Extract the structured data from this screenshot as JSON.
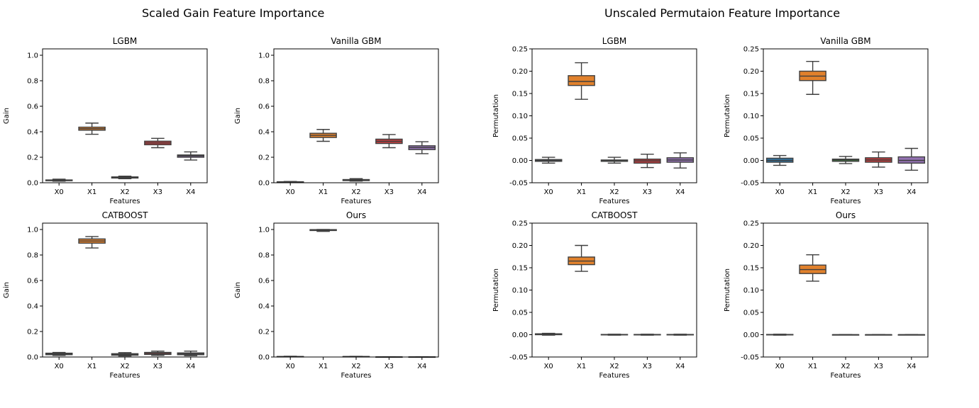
{
  "figure": {
    "left_title": "Scaled Gain Feature Importance",
    "right_title": "Unscaled Permutaion Feature Importance"
  },
  "colors": {
    "X0": "#3274a1",
    "X1": "#e1812c",
    "X2": "#3a923a",
    "X3": "#c03d3e",
    "X4": "#9372b2",
    "box_edge": "#3f3f3f"
  },
  "chart_data": [
    {
      "type": "boxplot",
      "title": "LGBM",
      "xlabel": "Features",
      "ylabel": "Gain",
      "categories": [
        "X0",
        "X1",
        "X2",
        "X3",
        "X4"
      ],
      "ylim": [
        0,
        1.05
      ],
      "yticks": [
        0.0,
        0.2,
        0.4,
        0.6,
        0.8,
        1.0
      ],
      "tick_decimals": 1,
      "boxes": [
        {
          "whislo": 0.012,
          "q1": 0.016,
          "med": 0.019,
          "q3": 0.022,
          "whishi": 0.028
        },
        {
          "whislo": 0.38,
          "q1": 0.412,
          "med": 0.424,
          "q3": 0.436,
          "whishi": 0.468
        },
        {
          "whislo": 0.032,
          "q1": 0.037,
          "med": 0.041,
          "q3": 0.046,
          "whishi": 0.052
        },
        {
          "whislo": 0.275,
          "q1": 0.298,
          "med": 0.312,
          "q3": 0.326,
          "whishi": 0.348
        },
        {
          "whislo": 0.178,
          "q1": 0.2,
          "med": 0.21,
          "q3": 0.218,
          "whishi": 0.242
        }
      ]
    },
    {
      "type": "boxplot",
      "title": "Vanilla GBM",
      "xlabel": "Features",
      "ylabel": "Gain",
      "categories": [
        "X0",
        "X1",
        "X2",
        "X3",
        "X4"
      ],
      "ylim": [
        0,
        1.05
      ],
      "yticks": [
        0.0,
        0.2,
        0.4,
        0.6,
        0.8,
        1.0
      ],
      "tick_decimals": 1,
      "boxes": [
        {
          "whislo": 0.002,
          "q1": 0.004,
          "med": 0.006,
          "q3": 0.008,
          "whishi": 0.01
        },
        {
          "whislo": 0.325,
          "q1": 0.355,
          "med": 0.372,
          "q3": 0.388,
          "whishi": 0.418
        },
        {
          "whislo": 0.013,
          "q1": 0.017,
          "med": 0.021,
          "q3": 0.025,
          "whishi": 0.032
        },
        {
          "whislo": 0.275,
          "q1": 0.308,
          "med": 0.325,
          "q3": 0.342,
          "whishi": 0.378
        },
        {
          "whislo": 0.228,
          "q1": 0.26,
          "med": 0.276,
          "q3": 0.29,
          "whishi": 0.322
        }
      ]
    },
    {
      "type": "boxplot",
      "title": "LGBM",
      "xlabel": "Features",
      "ylabel": "Permutation",
      "categories": [
        "X0",
        "X1",
        "X2",
        "X3",
        "X4"
      ],
      "ylim": [
        -0.05,
        0.25
      ],
      "yticks": [
        -0.05,
        0.0,
        0.05,
        0.1,
        0.15,
        0.2,
        0.25
      ],
      "tick_decimals": 2,
      "boxes": [
        {
          "whislo": -0.006,
          "q1": -0.002,
          "med": 0.0,
          "q3": 0.002,
          "whishi": 0.007
        },
        {
          "whislo": 0.137,
          "q1": 0.168,
          "med": 0.177,
          "q3": 0.19,
          "whishi": 0.219
        },
        {
          "whislo": -0.006,
          "q1": -0.002,
          "med": 0.0,
          "q3": 0.001,
          "whishi": 0.007
        },
        {
          "whislo": -0.016,
          "q1": -0.006,
          "med": -0.001,
          "q3": 0.003,
          "whishi": 0.014
        },
        {
          "whislo": -0.017,
          "q1": -0.004,
          "med": 0.001,
          "q3": 0.006,
          "whishi": 0.017
        }
      ]
    },
    {
      "type": "boxplot",
      "title": "Vanilla GBM",
      "xlabel": "Features",
      "ylabel": "Permutation",
      "categories": [
        "X0",
        "X1",
        "X2",
        "X3",
        "X4"
      ],
      "ylim": [
        -0.05,
        0.25
      ],
      "yticks": [
        -0.05,
        0.0,
        0.05,
        0.1,
        0.15,
        0.2,
        0.25
      ],
      "tick_decimals": 2,
      "boxes": [
        {
          "whislo": -0.011,
          "q1": -0.004,
          "med": 0.0,
          "q3": 0.005,
          "whishi": 0.011
        },
        {
          "whislo": 0.148,
          "q1": 0.179,
          "med": 0.189,
          "q3": 0.2,
          "whishi": 0.222
        },
        {
          "whislo": -0.007,
          "q1": -0.002,
          "med": 0.001,
          "q3": 0.003,
          "whishi": 0.009
        },
        {
          "whislo": -0.015,
          "q1": -0.004,
          "med": 0.001,
          "q3": 0.006,
          "whishi": 0.019
        },
        {
          "whislo": -0.022,
          "q1": -0.006,
          "med": 0.0,
          "q3": 0.008,
          "whishi": 0.027
        }
      ]
    },
    {
      "type": "boxplot",
      "title": "CATBOOST",
      "xlabel": "Features",
      "ylabel": "Gain",
      "categories": [
        "X0",
        "X1",
        "X2",
        "X3",
        "X4"
      ],
      "ylim": [
        0,
        1.05
      ],
      "yticks": [
        0.0,
        0.2,
        0.4,
        0.6,
        0.8,
        1.0
      ],
      "tick_decimals": 1,
      "boxes": [
        {
          "whislo": 0.012,
          "q1": 0.018,
          "med": 0.024,
          "q3": 0.03,
          "whishi": 0.036
        },
        {
          "whislo": 0.855,
          "q1": 0.893,
          "med": 0.91,
          "q3": 0.926,
          "whishi": 0.945
        },
        {
          "whislo": 0.008,
          "q1": 0.014,
          "med": 0.02,
          "q3": 0.026,
          "whishi": 0.034
        },
        {
          "whislo": 0.012,
          "q1": 0.02,
          "med": 0.028,
          "q3": 0.036,
          "whishi": 0.046
        },
        {
          "whislo": 0.01,
          "q1": 0.018,
          "med": 0.025,
          "q3": 0.032,
          "whishi": 0.046
        }
      ]
    },
    {
      "type": "boxplot",
      "title": "Ours",
      "xlabel": "Features",
      "ylabel": "Gain",
      "categories": [
        "X0",
        "X1",
        "X2",
        "X3",
        "X4"
      ],
      "ylim": [
        0,
        1.05
      ],
      "yticks": [
        0.0,
        0.2,
        0.4,
        0.6,
        0.8,
        1.0
      ],
      "tick_decimals": 1,
      "boxes": [
        {
          "whislo": 0.001,
          "q1": 0.002,
          "med": 0.003,
          "q3": 0.004,
          "whishi": 0.006
        },
        {
          "whislo": 0.985,
          "q1": 0.992,
          "med": 0.996,
          "q3": 0.999,
          "whishi": 1.0
        },
        {
          "whislo": 0.001,
          "q1": 0.002,
          "med": 0.003,
          "q3": 0.004,
          "whishi": 0.005
        },
        {
          "whislo": 0.0,
          "q1": 0.0,
          "med": 0.001,
          "q3": 0.001,
          "whishi": 0.002
        },
        {
          "whislo": 0.0,
          "q1": 0.0,
          "med": 0.0,
          "q3": 0.001,
          "whishi": 0.001
        }
      ]
    },
    {
      "type": "boxplot",
      "title": "CATBOOST",
      "xlabel": "Features",
      "ylabel": "Permutation",
      "categories": [
        "X0",
        "X1",
        "X2",
        "X3",
        "X4"
      ],
      "ylim": [
        -0.05,
        0.25
      ],
      "yticks": [
        -0.05,
        0.0,
        0.05,
        0.1,
        0.15,
        0.2,
        0.25
      ],
      "tick_decimals": 2,
      "boxes": [
        {
          "whislo": -0.001,
          "q1": 0.0,
          "med": 0.001,
          "q3": 0.002,
          "whishi": 0.003
        },
        {
          "whislo": 0.142,
          "q1": 0.157,
          "med": 0.165,
          "q3": 0.174,
          "whishi": 0.2
        },
        {
          "whislo": -0.001,
          "q1": -0.0005,
          "med": 0.0,
          "q3": 0.0005,
          "whishi": 0.001
        },
        {
          "whislo": -0.001,
          "q1": -0.0005,
          "med": 0.0,
          "q3": 0.0005,
          "whishi": 0.001
        },
        {
          "whislo": -0.001,
          "q1": -0.0005,
          "med": 0.0,
          "q3": 0.0005,
          "whishi": 0.001
        }
      ]
    },
    {
      "type": "boxplot",
      "title": "Ours",
      "xlabel": "Features",
      "ylabel": "Permutation",
      "categories": [
        "X0",
        "X1",
        "X2",
        "X3",
        "X4"
      ],
      "ylim": [
        -0.05,
        0.25
      ],
      "yticks": [
        -0.05,
        0.0,
        0.05,
        0.1,
        0.15,
        0.2,
        0.25
      ],
      "tick_decimals": 2,
      "boxes": [
        {
          "whislo": -0.001,
          "q1": -0.0005,
          "med": 0.0,
          "q3": 0.0005,
          "whishi": 0.001
        },
        {
          "whislo": 0.12,
          "q1": 0.137,
          "med": 0.146,
          "q3": 0.156,
          "whishi": 0.179
        },
        {
          "whislo": 0.0,
          "q1": 0.0,
          "med": 0.0,
          "q3": 0.0,
          "whishi": 0.0
        },
        {
          "whislo": 0.0,
          "q1": 0.0,
          "med": 0.0,
          "q3": 0.0,
          "whishi": 0.0
        },
        {
          "whislo": 0.0,
          "q1": 0.0,
          "med": 0.0,
          "q3": 0.0,
          "whishi": 0.0
        }
      ]
    }
  ]
}
